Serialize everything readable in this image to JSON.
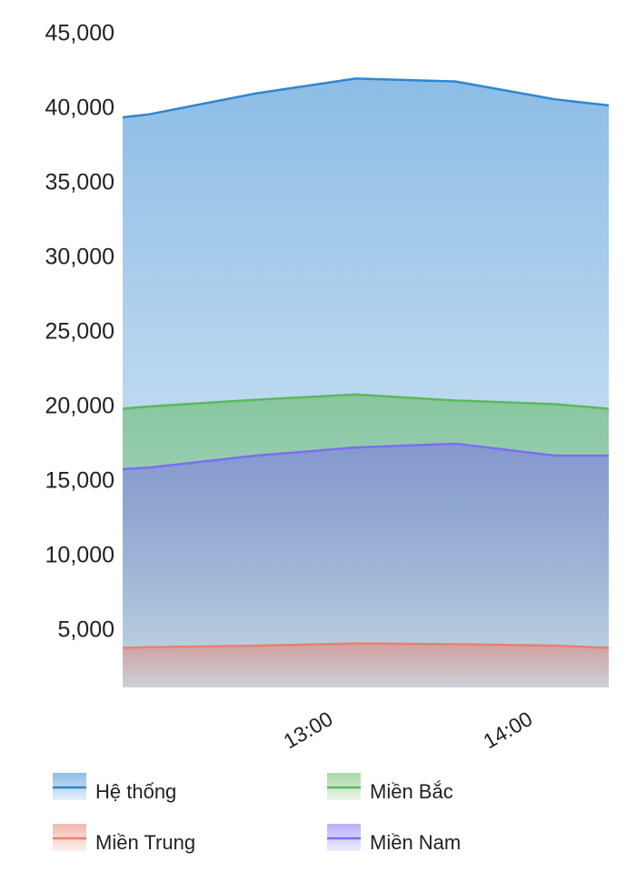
{
  "chart_data": {
    "type": "area",
    "x": [
      "12:00",
      "12:08",
      "12:40",
      "13:10",
      "13:40",
      "14:10",
      "14:26"
    ],
    "series": [
      {
        "name": "Hệ thống",
        "color": "#2f86d1",
        "values": [
          39450,
          39650,
          41050,
          42050,
          41850,
          40650,
          40250
        ]
      },
      {
        "name": "Miền Bắc",
        "color": "#5cb85c",
        "values": [
          19900,
          20050,
          20500,
          20850,
          20450,
          20200,
          19900
        ]
      },
      {
        "name": "Miền Trung",
        "color": "#e8806e",
        "values": [
          3850,
          3900,
          4000,
          4150,
          4100,
          4000,
          3850
        ]
      },
      {
        "name": "Miền Nam",
        "color": "#7b6ff0",
        "values": [
          15850,
          15950,
          16750,
          17300,
          17550,
          16750,
          16750
        ]
      }
    ],
    "draw_order": [
      0,
      1,
      3,
      2
    ],
    "xlim": [
      "12:00",
      "14:26"
    ],
    "xticks": [
      "13:00",
      "14:00"
    ],
    "ylim": [
      1200,
      45000
    ],
    "yticks": [
      {
        "value": 5000,
        "label": "5,000"
      },
      {
        "value": 10000,
        "label": "10,000"
      },
      {
        "value": 15000,
        "label": "15,000"
      },
      {
        "value": 20000,
        "label": "20,000"
      },
      {
        "value": 25000,
        "label": "25,000"
      },
      {
        "value": 30000,
        "label": "30,000"
      },
      {
        "value": 35000,
        "label": "35,000"
      },
      {
        "value": 40000,
        "label": "40,000"
      },
      {
        "value": 45000,
        "label": "45,000"
      }
    ],
    "grid": false
  }
}
